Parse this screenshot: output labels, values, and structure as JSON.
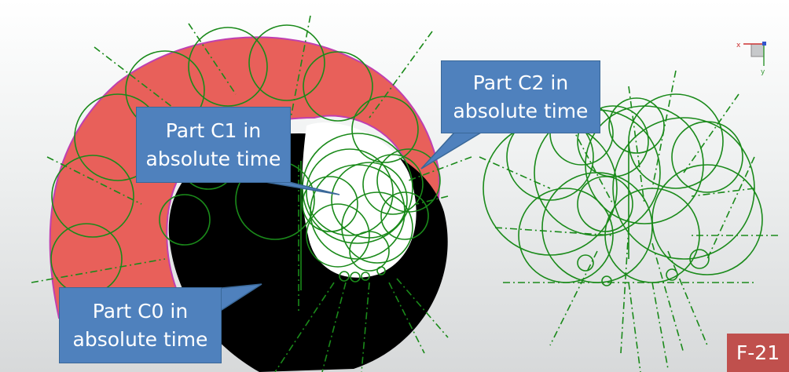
{
  "callouts": {
    "c1": {
      "line1": "Part C1 in",
      "line2": "absolute time"
    },
    "c2": {
      "line1": "Part C2 in",
      "line2": "absolute time"
    },
    "c0": {
      "line1": "Part C0 in",
      "line2": "absolute time"
    }
  },
  "figure_label": "F-21",
  "view_cube": {
    "axis_x": "x",
    "axis_y": "y"
  },
  "colors": {
    "part_c0": "#000000",
    "part_c1": "#ffffff",
    "part_c2": "#e8605a",
    "construction_lines": "#1a8a1a",
    "callout_fill": "#4f81bd",
    "figure_label_fill": "#c0504d"
  }
}
